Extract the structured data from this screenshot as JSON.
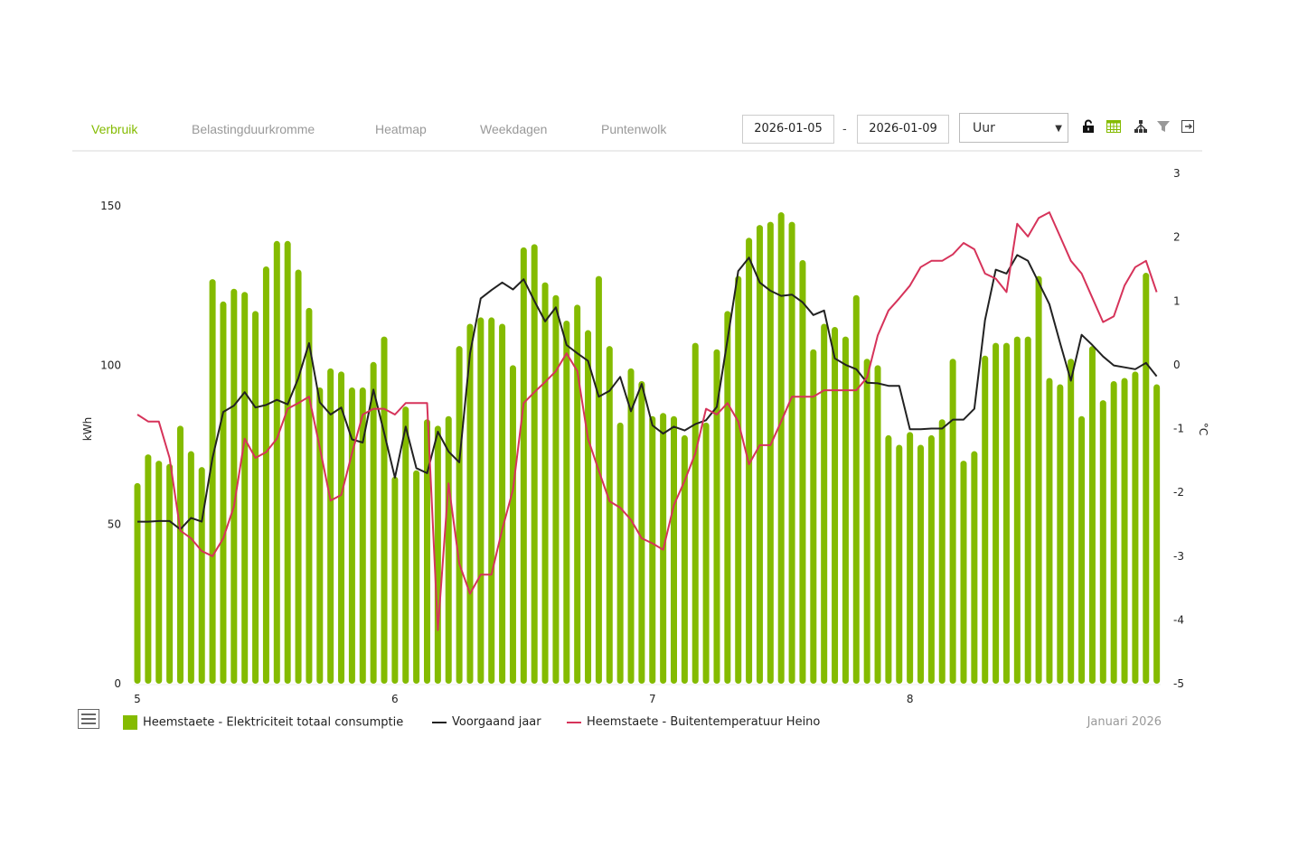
{
  "tabs": [
    {
      "label": "Verbruik",
      "active": true
    },
    {
      "label": "Belastingduurkromme",
      "active": false
    },
    {
      "label": "Heatmap",
      "active": false
    },
    {
      "label": "Weekdagen",
      "active": false
    },
    {
      "label": "Puntenwolk",
      "active": false
    }
  ],
  "toolbar": {
    "date_from": "2026-01-05",
    "date_separator": "-",
    "date_to": "2026-01-09",
    "interval": "Uur",
    "icons": [
      "unlock-icon",
      "table-icon",
      "hierarchy-icon",
      "filter-icon",
      "export-icon"
    ]
  },
  "colors": {
    "accent": "#84bb00",
    "bar": "#84bb00",
    "previous_year": "#222222",
    "temperature": "#d6335a",
    "inactive_tab": "#999999"
  },
  "period_label": "Januari 2026",
  "chart_data": {
    "type": "bar",
    "xlabel": "",
    "ylabel": "kWh",
    "y2label": "°C",
    "ylim": [
      0,
      150
    ],
    "y2lim": [
      -5,
      3
    ],
    "yticks": [
      "0",
      "50",
      "100",
      "150"
    ],
    "y2ticks": [
      "-5",
      "-4",
      "-3",
      "-2",
      "-1",
      "0",
      "1",
      "2",
      "3"
    ],
    "xticks": [
      "5",
      "6",
      "7",
      "8"
    ],
    "points_per_day": 24,
    "legend_position": "bottom-left",
    "series": [
      {
        "name": "Heemstaete - Elektriciteit totaal consumptie",
        "type": "bar",
        "axis": "left",
        "values": [
          63,
          72,
          70,
          69,
          81,
          73,
          68,
          127,
          120,
          124,
          123,
          117,
          131,
          139,
          139,
          130,
          118,
          93,
          99,
          98,
          93,
          93,
          101,
          109,
          65,
          87,
          67,
          83,
          81,
          84,
          106,
          113,
          115,
          115,
          113,
          100,
          137,
          138,
          126,
          122,
          114,
          119,
          111,
          128,
          106,
          82,
          99,
          95,
          84,
          85,
          84,
          78,
          107,
          82,
          105,
          117,
          128,
          140,
          144,
          145,
          148,
          145,
          133,
          105,
          113,
          112,
          109,
          122,
          102,
          100,
          78,
          75,
          79,
          75,
          78,
          83,
          102,
          70,
          73,
          103,
          107,
          107,
          109,
          109,
          128,
          96,
          94,
          102,
          84,
          106,
          89,
          95,
          96,
          98,
          129,
          94
        ]
      },
      {
        "name": "Voorgaand jaar",
        "type": "line",
        "axis": "right",
        "values": [
          -2.46,
          -2.46,
          -2.45,
          -2.45,
          -2.58,
          -2.4,
          -2.46,
          -1.46,
          -0.74,
          -0.64,
          -0.43,
          -0.67,
          -0.63,
          -0.55,
          -0.62,
          -0.21,
          0.34,
          -0.59,
          -0.78,
          -0.67,
          -1.17,
          -1.22,
          -0.39,
          -1.07,
          -1.77,
          -0.97,
          -1.62,
          -1.7,
          -1.05,
          -1.36,
          -1.53,
          0.18,
          1.04,
          1.17,
          1.29,
          1.18,
          1.34,
          1.0,
          0.68,
          0.9,
          0.31,
          0.18,
          0.06,
          -0.5,
          -0.41,
          -0.19,
          -0.73,
          -0.3,
          -0.95,
          -1.08,
          -0.97,
          -1.03,
          -0.93,
          -0.87,
          -0.66,
          0.39,
          1.47,
          1.68,
          1.29,
          1.16,
          1.08,
          1.1,
          0.98,
          0.78,
          0.85,
          0.1,
          0.0,
          -0.07,
          -0.28,
          -0.29,
          -0.33,
          -0.33,
          -1.01,
          -1.01,
          -1.0,
          -1.0,
          -0.86,
          -0.86,
          -0.69,
          0.7,
          1.49,
          1.43,
          1.72,
          1.63,
          1.29,
          0.95,
          0.34,
          -0.25,
          0.47,
          0.31,
          0.13,
          -0.01,
          -0.04,
          -0.07,
          0.03,
          -0.18
        ]
      },
      {
        "name": "Heemstaete - Buitentemperatuur Heino",
        "type": "line",
        "axis": "right",
        "values": [
          -0.78,
          -0.89,
          -0.89,
          -1.46,
          -2.6,
          -2.72,
          -2.92,
          -3.0,
          -2.72,
          -2.22,
          -1.16,
          -1.46,
          -1.37,
          -1.16,
          -0.69,
          -0.6,
          -0.5,
          -1.3,
          -2.13,
          -2.04,
          -1.39,
          -0.78,
          -0.69,
          -0.69,
          -0.78,
          -0.6,
          -0.6,
          -0.6,
          -4.16,
          -1.86,
          -3.12,
          -3.59,
          -3.29,
          -3.29,
          -2.58,
          -1.96,
          -0.6,
          -0.43,
          -0.27,
          -0.1,
          0.18,
          -0.1,
          -1.16,
          -1.66,
          -2.14,
          -2.24,
          -2.43,
          -2.72,
          -2.8,
          -2.9,
          -2.2,
          -1.82,
          -1.39,
          -0.69,
          -0.78,
          -0.6,
          -0.89,
          -1.56,
          -1.26,
          -1.26,
          -0.89,
          -0.5,
          -0.5,
          -0.5,
          -0.4,
          -0.4,
          -0.4,
          -0.4,
          -0.2,
          0.46,
          0.85,
          1.04,
          1.24,
          1.53,
          1.63,
          1.63,
          1.73,
          1.91,
          1.81,
          1.43,
          1.35,
          1.14,
          2.21,
          2.01,
          2.3,
          2.39,
          2.01,
          1.63,
          1.43,
          1.05,
          0.67,
          0.76,
          1.24,
          1.53,
          1.63,
          1.14
        ]
      }
    ]
  }
}
